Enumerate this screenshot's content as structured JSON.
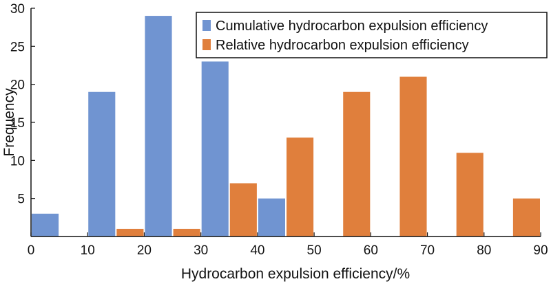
{
  "chart_data": {
    "type": "bar",
    "title": "",
    "xlabel": "Hydrocarbon expulsion efficiency/%",
    "ylabel": "Frequency",
    "xlim": [
      0,
      90
    ],
    "ylim": [
      0,
      30
    ],
    "x_ticks": [
      0,
      10,
      20,
      30,
      40,
      50,
      60,
      70,
      80,
      90
    ],
    "y_ticks": [
      5,
      10,
      15,
      20,
      25,
      30
    ],
    "x_tick_labels": [
      "0",
      "10",
      "20",
      "30",
      "40",
      "50",
      "60",
      "70",
      "80",
      "90"
    ],
    "y_tick_labels": [
      "5",
      "10",
      "15",
      "20",
      "25",
      "30"
    ],
    "bins": [
      [
        0,
        10
      ],
      [
        10,
        20
      ],
      [
        20,
        30
      ],
      [
        30,
        40
      ],
      [
        40,
        50
      ],
      [
        50,
        60
      ],
      [
        60,
        70
      ],
      [
        70,
        80
      ],
      [
        80,
        90
      ]
    ],
    "grid": false,
    "legend_position": "top-right",
    "series": [
      {
        "name": "Cumulative hydrocarbon expulsion efficiency",
        "color": "#7094d1",
        "values": [
          3,
          19,
          29,
          23,
          5,
          0,
          0,
          0,
          0
        ]
      },
      {
        "name": "Relative hydrocarbon expulsion efficiency",
        "color": "#e07f3c",
        "values": [
          0,
          1,
          1,
          7,
          13,
          19,
          21,
          11,
          5
        ]
      }
    ]
  }
}
